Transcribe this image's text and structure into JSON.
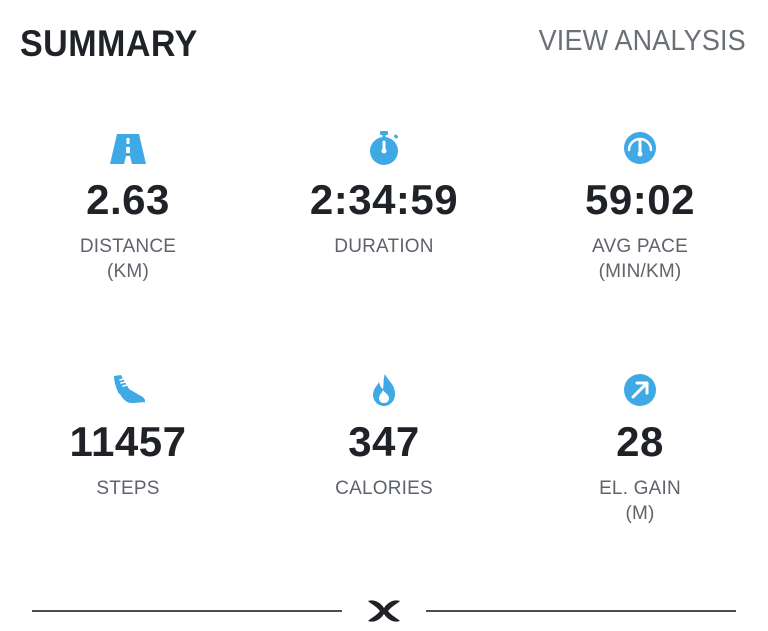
{
  "header": {
    "title": "SUMMARY",
    "action_label": "VIEW ANALYSIS"
  },
  "stats": [
    {
      "icon": "road-icon",
      "value": "2.63",
      "label": "DISTANCE",
      "unit": "(KM)"
    },
    {
      "icon": "stopwatch-icon",
      "value": "2:34:59",
      "label": "DURATION",
      "unit": ""
    },
    {
      "icon": "speedometer-icon",
      "value": "59:02",
      "label": "AVG PACE",
      "unit": "(MIN/KM)"
    },
    {
      "icon": "shoe-icon",
      "value": "11457",
      "label": "STEPS",
      "unit": ""
    },
    {
      "icon": "flame-icon",
      "value": "347",
      "label": "CALORIES",
      "unit": ""
    },
    {
      "icon": "arrow-up-right-icon",
      "value": "28",
      "label": "EL. GAIN",
      "unit": "(M)"
    }
  ],
  "colors": {
    "accent": "#3fa9e6",
    "text_primary": "#1f2227",
    "text_secondary": "#5f636b",
    "link": "#6b6f76",
    "divider": "#4a4d52"
  },
  "footer": {
    "logo": "brand-logo"
  }
}
